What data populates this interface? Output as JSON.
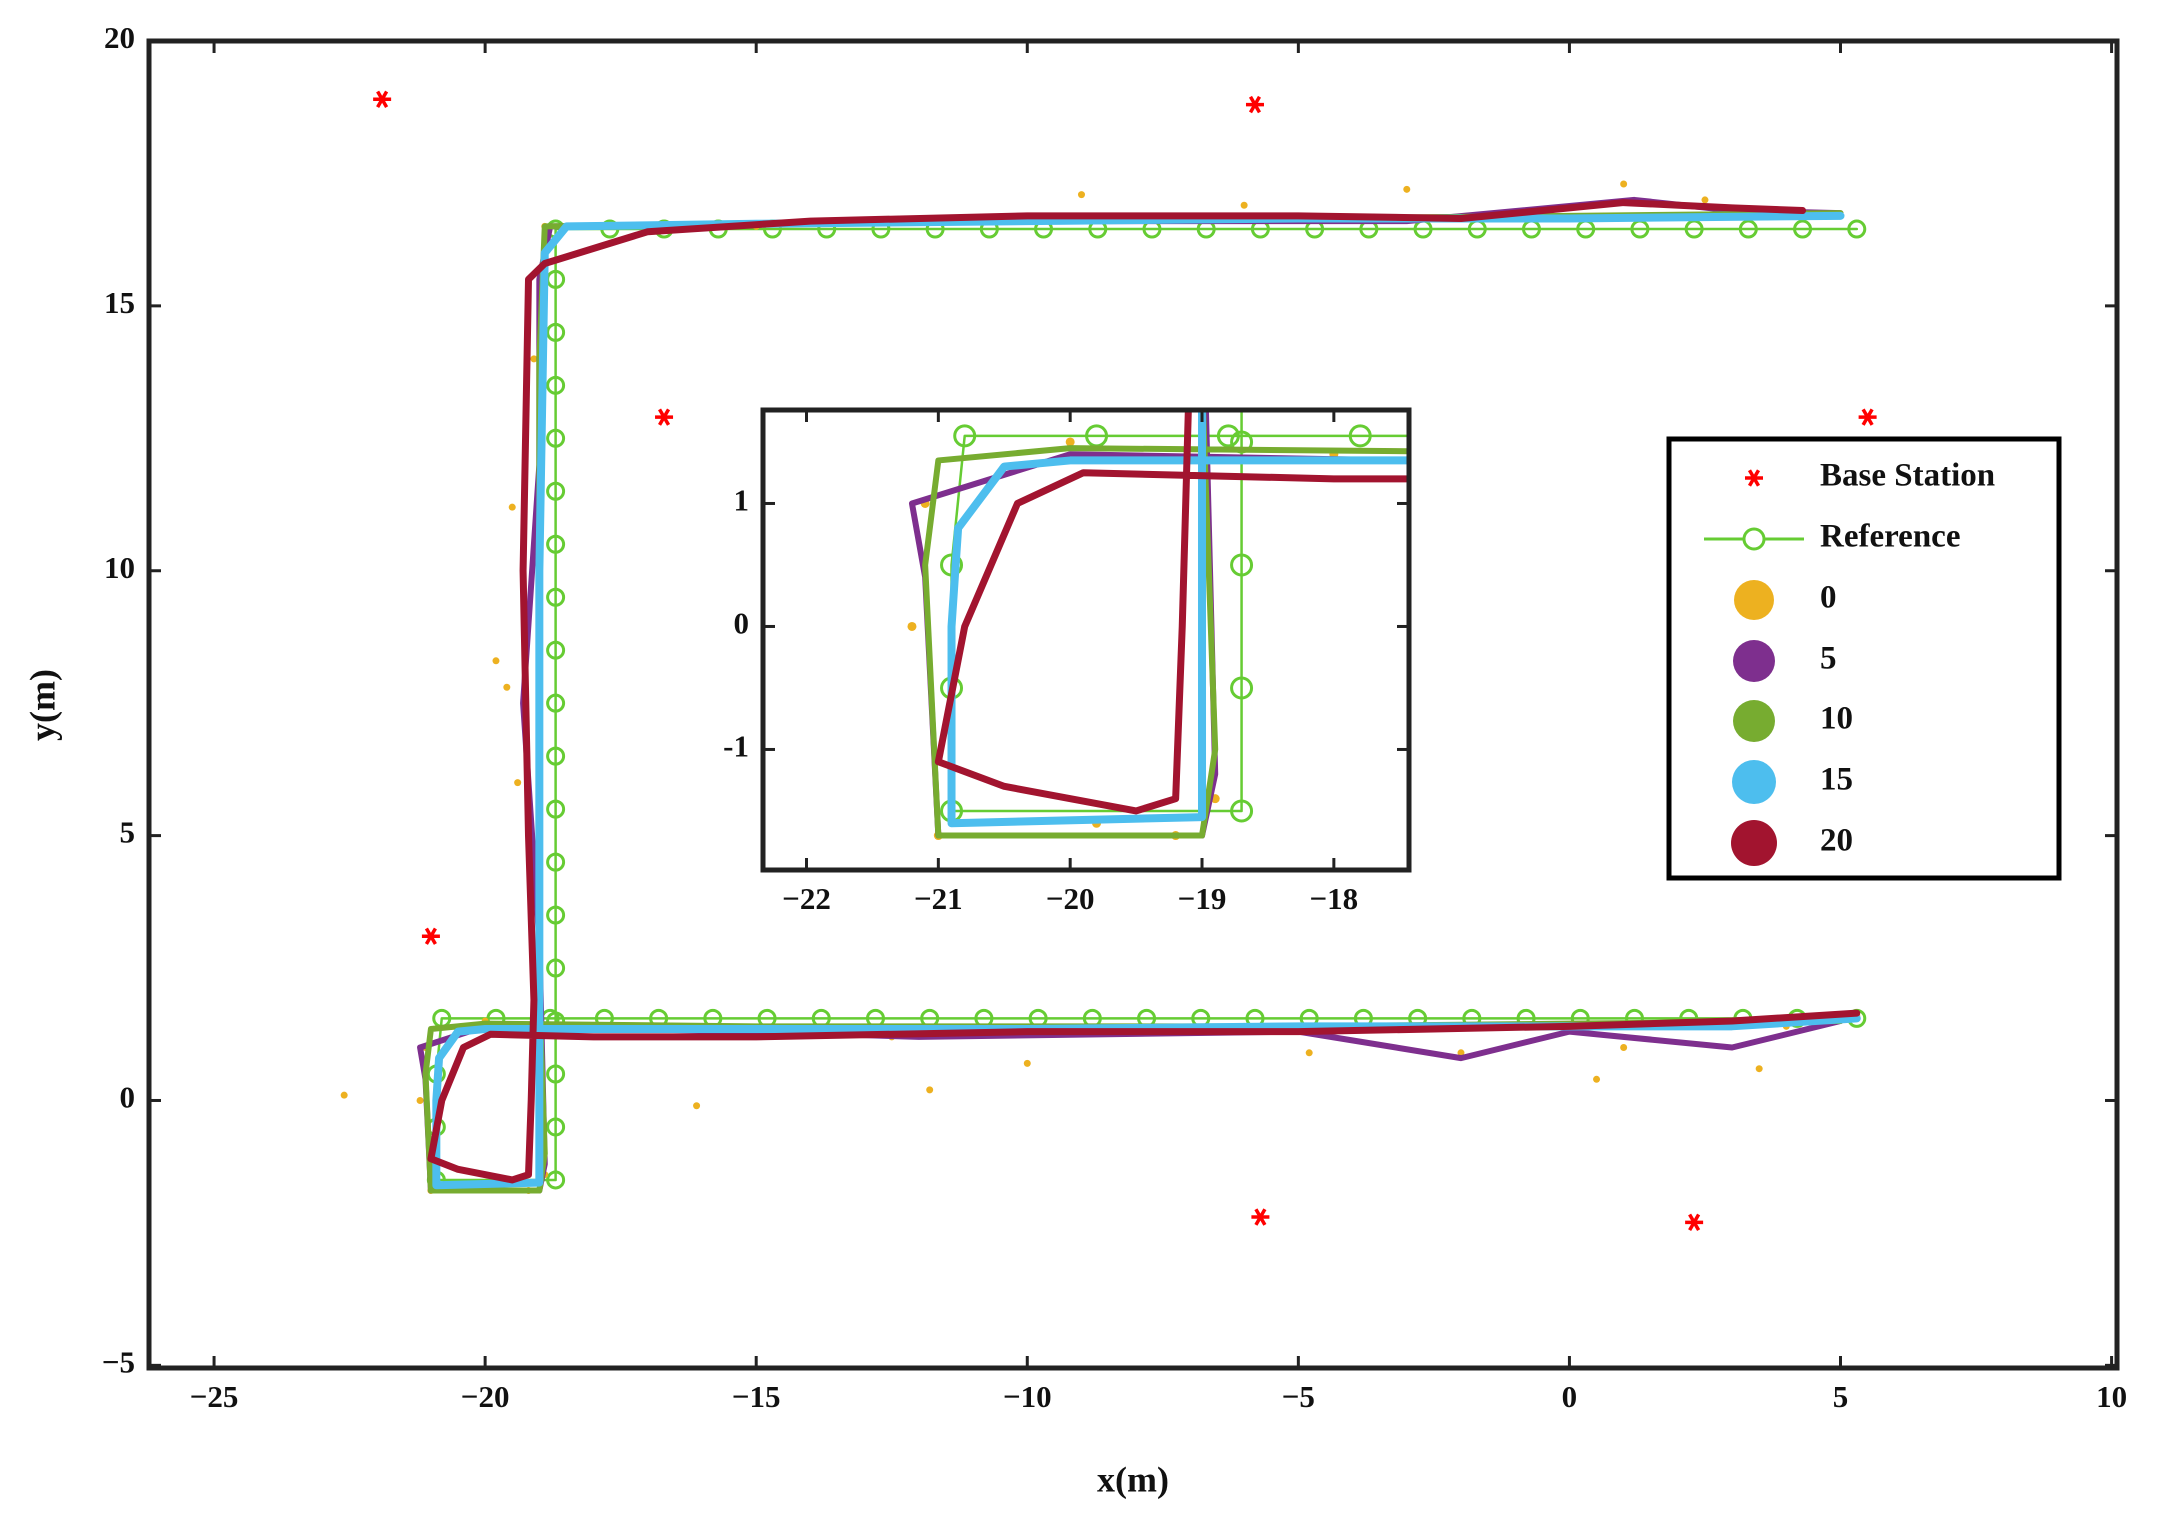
{
  "chart_data": [
    {
      "type": "line",
      "xlabel": "x(m)",
      "ylabel": "y(m)",
      "xlim": [
        -26.2,
        10.1
      ],
      "ylim": [
        -5.05,
        20
      ],
      "xticks": [
        {
          "value": -25,
          "label": "−25"
        },
        {
          "value": -20,
          "label": "−20"
        },
        {
          "value": -15,
          "label": "−15"
        },
        {
          "value": -10,
          "label": "−10"
        },
        {
          "value": -5,
          "label": "−5"
        },
        0,
        5,
        10
      ],
      "yticks": [
        {
          "value": -5,
          "label": "−5"
        },
        0,
        5,
        10,
        15,
        20
      ],
      "series": [
        {
          "name": "Base Station",
          "color": "#ff0000",
          "marker": "star",
          "x": [
            -21.9,
            -5.8,
            -16.7,
            5.5,
            -21.0,
            -5.7,
            2.3
          ],
          "values": [
            18.9,
            18.8,
            12.9,
            12.9,
            3.1,
            -2.2,
            -2.3
          ]
        },
        {
          "name": "Reference",
          "color": "#66cc33",
          "marker": "circle-line",
          "x": [
            5.3,
            4.2,
            3.2,
            2.2,
            1.2,
            0.2,
            -0.8,
            -1.8,
            -2.8,
            -3.8,
            -4.8,
            -5.8,
            -6.8,
            -7.8,
            -8.8,
            -9.8,
            -10.8,
            -11.8,
            -12.8,
            -13.8,
            -14.8,
            -15.8,
            -16.8,
            -17.8,
            -18.8,
            -19.8,
            -20.8,
            -20.9,
            -20.9,
            -20.9,
            -18.7,
            -18.7,
            -18.7,
            -18.7,
            -18.7,
            -18.7,
            -18.7,
            -18.7,
            -18.7,
            -18.7,
            -18.7,
            -18.7,
            -18.7,
            -18.7,
            -18.7,
            -18.7,
            -18.7,
            -18.7,
            -18.7,
            -17.7,
            -16.7,
            -15.7,
            -14.7,
            -13.7,
            -12.7,
            -11.7,
            -10.7,
            -9.7,
            -8.7,
            -7.7,
            -6.7,
            -5.7,
            -4.7,
            -3.7,
            -2.7,
            -1.7,
            -0.7,
            0.3,
            1.3,
            2.3,
            3.3,
            4.3,
            5.3
          ],
          "values": [
            1.55,
            1.55,
            1.55,
            1.55,
            1.55,
            1.55,
            1.55,
            1.55,
            1.55,
            1.55,
            1.55,
            1.55,
            1.55,
            1.55,
            1.55,
            1.55,
            1.55,
            1.55,
            1.55,
            1.55,
            1.55,
            1.55,
            1.55,
            1.55,
            1.55,
            1.55,
            1.55,
            0.5,
            -0.5,
            -1.5,
            -1.5,
            -0.5,
            0.5,
            1.5,
            2.5,
            3.5,
            4.5,
            5.5,
            6.5,
            7.5,
            8.5,
            9.5,
            10.5,
            11.5,
            12.5,
            13.5,
            14.5,
            15.5,
            16.45,
            16.45,
            16.45,
            16.45,
            16.45,
            16.45,
            16.45,
            16.45,
            16.45,
            16.45,
            16.45,
            16.45,
            16.45,
            16.45,
            16.45,
            16.45,
            16.45,
            16.45,
            16.45,
            16.45,
            16.45,
            16.45,
            16.45,
            16.45,
            16.45
          ]
        },
        {
          "name": "0",
          "color": "#edb120",
          "marker": "dots",
          "x": [
            5.3,
            4,
            3.5,
            2.5,
            1,
            0.5,
            -1,
            -2,
            -3,
            -4.8,
            -6,
            -8,
            -10,
            -11.8,
            -12.5,
            -15.7,
            -16.1,
            -18,
            -20,
            -21.1,
            -21.2,
            -21.0,
            -19.8,
            -18.9,
            -19.0,
            -19.4,
            -19.8,
            -19.5,
            -19.1,
            -18.9,
            -15,
            -9,
            -6,
            -3,
            1,
            2.5,
            5,
            -22.6,
            -19.6,
            -19.2
          ],
          "values": [
            1.6,
            1.4,
            0.6,
            1.4,
            1.0,
            0.4,
            1.4,
            0.9,
            1.4,
            0.9,
            1.4,
            1.3,
            0.7,
            0.2,
            1.2,
            1.3,
            -0.1,
            1.4,
            1.5,
            1.0,
            0,
            -1.7,
            -1.6,
            -1.4,
            2,
            6,
            8.3,
            11.2,
            14,
            16.5,
            16.5,
            17.1,
            16.9,
            17.2,
            17.3,
            17,
            16.7,
            0.1,
            7.8,
            -1.7
          ]
        },
        {
          "name": "5",
          "color": "#7e2f8e",
          "marker": "line",
          "x": [
            5,
            3,
            0,
            -2,
            -5,
            -12,
            -15,
            -20,
            -21.2,
            -21.1,
            -21,
            -19,
            -18.9,
            -19.0,
            -19.3,
            -19.0,
            -19.0,
            -18.8,
            -10,
            -3,
            1.2,
            3,
            5
          ],
          "values": [
            1.5,
            1.0,
            1.3,
            0.8,
            1.3,
            1.2,
            1.3,
            1.4,
            1.0,
            0.4,
            -1.7,
            -1.7,
            -1.2,
            3,
            7.5,
            12,
            15.5,
            16.5,
            16.6,
            16.6,
            17.0,
            16.8,
            16.75
          ]
        },
        {
          "name": "10",
          "color": "#77ac30",
          "marker": "line",
          "x": [
            5,
            0,
            -5,
            -10,
            -15,
            -20,
            -21,
            -21.1,
            -21.0,
            -19.0,
            -18.9,
            -19.0,
            -19.0,
            -19.0,
            -18.9,
            -15,
            -10,
            -5,
            0,
            5
          ],
          "values": [
            1.5,
            1.45,
            1.4,
            1.4,
            1.4,
            1.45,
            1.35,
            0.5,
            -1.7,
            -1.7,
            -1.0,
            2,
            8,
            14,
            16.5,
            16.55,
            16.6,
            16.65,
            16.7,
            16.75
          ]
        },
        {
          "name": "15",
          "color": "#4dbeee",
          "marker": "line",
          "x": [
            5.3,
            3,
            0,
            -5,
            -10,
            -15,
            -20,
            -20.5,
            -20.85,
            -20.9,
            -20.9,
            -19,
            -19.0,
            -19.0,
            -19.0,
            -19.0,
            -18.9,
            -18.5,
            -15,
            -10,
            -5,
            0,
            5
          ],
          "values": [
            1.55,
            1.4,
            1.4,
            1.4,
            1.35,
            1.35,
            1.35,
            1.3,
            0.8,
            0,
            -1.6,
            -1.55,
            -1.2,
            1.2,
            5,
            10,
            16.0,
            16.5,
            16.55,
            16.6,
            16.65,
            16.65,
            16.7
          ]
        },
        {
          "name": "20",
          "color": "#a2142f",
          "marker": "line",
          "x": [
            5.3,
            3,
            0,
            -5,
            -10,
            -15,
            -18,
            -19.9,
            -20.4,
            -20.8,
            -21,
            -20.5,
            -19.5,
            -19.2,
            -19.15,
            -19.1,
            -19.2,
            -19.3,
            -19.2,
            -18.9,
            -17,
            -14,
            -10,
            -5,
            -2,
            1,
            3,
            4.3
          ],
          "values": [
            1.65,
            1.5,
            1.4,
            1.3,
            1.3,
            1.2,
            1.2,
            1.25,
            1.0,
            0,
            -1.1,
            -1.3,
            -1.5,
            -1.4,
            0,
            1.9,
            5,
            10,
            15.5,
            15.8,
            16.4,
            16.6,
            16.7,
            16.7,
            16.65,
            16.95,
            16.85,
            16.8
          ]
        }
      ]
    },
    {
      "type": "line",
      "xlim": [
        -22.33,
        -17.43
      ],
      "ylim": [
        -1.98,
        1.76
      ],
      "xticks": [
        {
          "value": -22,
          "label": "−22"
        },
        {
          "value": -21,
          "label": "−21"
        },
        {
          "value": -20,
          "label": "−20"
        },
        {
          "value": -19,
          "label": "−19"
        },
        {
          "value": -18,
          "label": "−18"
        }
      ],
      "yticks": [
        -1,
        0,
        1
      ]
    }
  ]
}
